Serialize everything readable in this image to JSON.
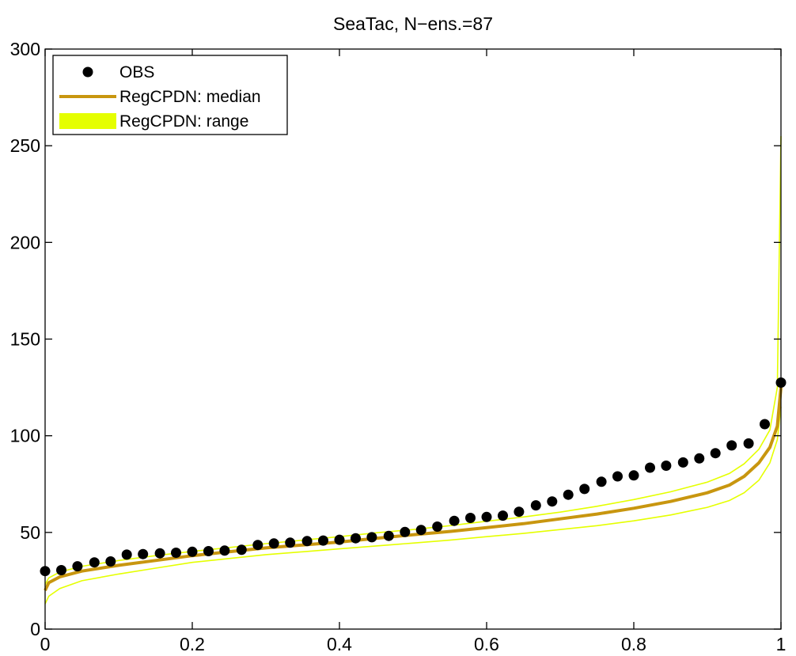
{
  "chart_data": {
    "type": "line",
    "title": "SeaTac, N−ens.=87",
    "xlabel": "",
    "ylabel": "",
    "xlim": [
      0,
      1
    ],
    "ylim": [
      0,
      300
    ],
    "x_ticks": [
      0,
      0.2,
      0.4,
      0.6,
      0.8,
      1
    ],
    "x_tick_labels": [
      "0",
      "0.2",
      "0.4",
      "0.6",
      "0.8",
      "1"
    ],
    "y_ticks": [
      0,
      50,
      100,
      150,
      200,
      250,
      300
    ],
    "y_tick_labels": [
      "0",
      "50",
      "100",
      "150",
      "200",
      "250",
      "300"
    ],
    "grid": false,
    "legend_position": "top-left",
    "legend": [
      {
        "label": "OBS",
        "kind": "marker",
        "color": "#000000"
      },
      {
        "label": "RegCPDN: median",
        "kind": "line",
        "color": "#c8960f"
      },
      {
        "label": "RegCPDN: range",
        "kind": "band",
        "color": "#e5ff00"
      }
    ],
    "series": [
      {
        "name": "OBS",
        "kind": "scatter",
        "color": "#000000",
        "points": [
          [
            0.0,
            30.0
          ],
          [
            0.022,
            30.5
          ],
          [
            0.044,
            32.5
          ],
          [
            0.067,
            34.5
          ],
          [
            0.089,
            35.0
          ],
          [
            0.111,
            38.5
          ],
          [
            0.133,
            38.8
          ],
          [
            0.156,
            39.2
          ],
          [
            0.178,
            39.5
          ],
          [
            0.2,
            40.0
          ],
          [
            0.222,
            40.3
          ],
          [
            0.244,
            40.6
          ],
          [
            0.267,
            41.0
          ],
          [
            0.289,
            43.5
          ],
          [
            0.311,
            44.3
          ],
          [
            0.333,
            44.7
          ],
          [
            0.356,
            45.5
          ],
          [
            0.378,
            45.8
          ],
          [
            0.4,
            46.2
          ],
          [
            0.422,
            47.0
          ],
          [
            0.444,
            47.5
          ],
          [
            0.467,
            48.2
          ],
          [
            0.489,
            50.2
          ],
          [
            0.511,
            51.3
          ],
          [
            0.533,
            53.0
          ],
          [
            0.556,
            56.0
          ],
          [
            0.578,
            57.5
          ],
          [
            0.6,
            58.0
          ],
          [
            0.622,
            58.7
          ],
          [
            0.644,
            60.7
          ],
          [
            0.667,
            64.0
          ],
          [
            0.689,
            66.0
          ],
          [
            0.711,
            69.5
          ],
          [
            0.733,
            72.5
          ],
          [
            0.756,
            76.2
          ],
          [
            0.778,
            79.0
          ],
          [
            0.8,
            79.5
          ],
          [
            0.822,
            83.5
          ],
          [
            0.844,
            84.5
          ],
          [
            0.867,
            86.2
          ],
          [
            0.889,
            88.3
          ],
          [
            0.911,
            91.0
          ],
          [
            0.933,
            95.0
          ],
          [
            0.956,
            96.0
          ],
          [
            0.978,
            106.0
          ],
          [
            1.0,
            127.5
          ]
        ]
      },
      {
        "name": "RegCPDN: median",
        "kind": "line",
        "color": "#c8960f",
        "points": [
          [
            0.0,
            20.0
          ],
          [
            0.005,
            24.0
          ],
          [
            0.02,
            27.0
          ],
          [
            0.05,
            30.0
          ],
          [
            0.1,
            33.0
          ],
          [
            0.15,
            35.5
          ],
          [
            0.2,
            38.0
          ],
          [
            0.25,
            40.0
          ],
          [
            0.3,
            42.0
          ],
          [
            0.35,
            43.5
          ],
          [
            0.4,
            45.0
          ],
          [
            0.45,
            47.0
          ],
          [
            0.5,
            48.8
          ],
          [
            0.55,
            50.5
          ],
          [
            0.6,
            52.5
          ],
          [
            0.65,
            54.5
          ],
          [
            0.7,
            57.0
          ],
          [
            0.75,
            59.5
          ],
          [
            0.8,
            62.5
          ],
          [
            0.85,
            66.0
          ],
          [
            0.9,
            70.5
          ],
          [
            0.93,
            74.5
          ],
          [
            0.95,
            79.0
          ],
          [
            0.97,
            86.0
          ],
          [
            0.985,
            94.0
          ],
          [
            0.995,
            105.0
          ],
          [
            1.0,
            125.0
          ]
        ]
      },
      {
        "name": "RegCPDN: range",
        "kind": "band",
        "color": "#e5ff00",
        "upper": [
          [
            0.0,
            23.0
          ],
          [
            0.005,
            26.5
          ],
          [
            0.02,
            29.5
          ],
          [
            0.05,
            32.5
          ],
          [
            0.1,
            35.5
          ],
          [
            0.15,
            38.0
          ],
          [
            0.2,
            40.2
          ],
          [
            0.25,
            42.2
          ],
          [
            0.3,
            44.2
          ],
          [
            0.35,
            46.0
          ],
          [
            0.4,
            47.8
          ],
          [
            0.45,
            49.8
          ],
          [
            0.5,
            51.5
          ],
          [
            0.55,
            53.5
          ],
          [
            0.6,
            55.8
          ],
          [
            0.65,
            58.0
          ],
          [
            0.7,
            60.5
          ],
          [
            0.75,
            63.5
          ],
          [
            0.8,
            67.0
          ],
          [
            0.85,
            71.0
          ],
          [
            0.9,
            76.0
          ],
          [
            0.93,
            80.5
          ],
          [
            0.95,
            85.5
          ],
          [
            0.97,
            93.0
          ],
          [
            0.985,
            103.0
          ],
          [
            0.995,
            125.0
          ],
          [
            1.0,
            255.0
          ]
        ],
        "lower": [
          [
            0.0,
            13.0
          ],
          [
            0.005,
            17.0
          ],
          [
            0.02,
            21.0
          ],
          [
            0.05,
            25.0
          ],
          [
            0.1,
            28.5
          ],
          [
            0.15,
            31.5
          ],
          [
            0.2,
            34.5
          ],
          [
            0.25,
            36.5
          ],
          [
            0.3,
            38.5
          ],
          [
            0.35,
            40.0
          ],
          [
            0.4,
            41.5
          ],
          [
            0.45,
            43.0
          ],
          [
            0.5,
            44.5
          ],
          [
            0.55,
            46.0
          ],
          [
            0.6,
            47.8
          ],
          [
            0.65,
            49.5
          ],
          [
            0.7,
            51.5
          ],
          [
            0.75,
            53.5
          ],
          [
            0.8,
            56.0
          ],
          [
            0.85,
            59.0
          ],
          [
            0.9,
            63.0
          ],
          [
            0.93,
            66.5
          ],
          [
            0.95,
            70.5
          ],
          [
            0.97,
            77.0
          ],
          [
            0.985,
            86.0
          ],
          [
            0.995,
            98.0
          ],
          [
            1.0,
            115.0
          ]
        ]
      }
    ]
  }
}
